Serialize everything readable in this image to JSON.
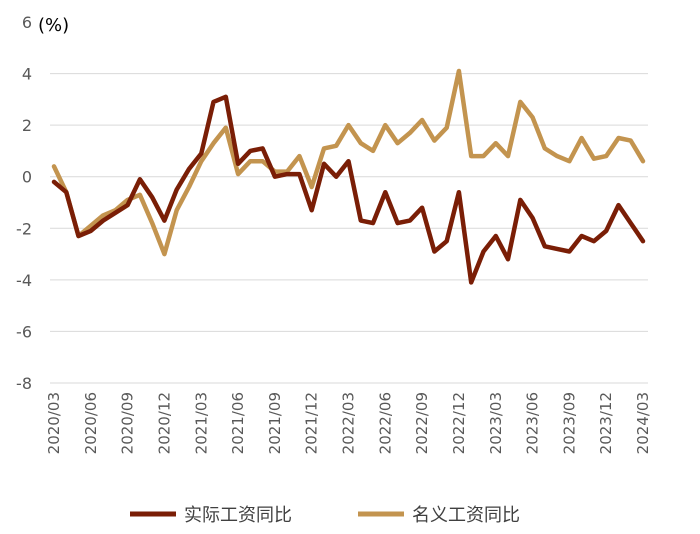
{
  "chart_data": {
    "type": "line",
    "unit_label": "(%)",
    "ylim": [
      -8,
      6
    ],
    "yticks": [
      "6",
      "4",
      "2",
      "0",
      "-2",
      "-4",
      "-6",
      "-8"
    ],
    "grid": true,
    "legend_position": "bottom",
    "x": [
      "2020/03",
      "2020/04",
      "2020/05",
      "2020/06",
      "2020/07",
      "2020/08",
      "2020/09",
      "2020/10",
      "2020/11",
      "2020/12",
      "2021/01",
      "2021/02",
      "2021/03",
      "2021/04",
      "2021/05",
      "2021/06",
      "2021/07",
      "2021/08",
      "2021/09",
      "2021/10",
      "2021/11",
      "2021/12",
      "2022/01",
      "2022/02",
      "2022/03",
      "2022/04",
      "2022/05",
      "2022/06",
      "2022/07",
      "2022/08",
      "2022/09",
      "2022/10",
      "2022/11",
      "2022/12",
      "2023/01",
      "2023/02",
      "2023/03",
      "2023/04",
      "2023/05",
      "2023/06",
      "2023/07",
      "2023/08",
      "2023/09",
      "2023/10",
      "2023/11",
      "2023/12",
      "2024/01",
      "2024/02",
      "2024/03"
    ],
    "xtick_labels": [
      "2020/03",
      "2020/06",
      "2020/09",
      "2020/12",
      "2021/03",
      "2021/06",
      "2021/09",
      "2021/12",
      "2022/03",
      "2022/06",
      "2022/09",
      "2022/12",
      "2023/03",
      "2023/06",
      "2023/09",
      "2023/12",
      "2024/03"
    ],
    "series": [
      {
        "name": "实际工资同比",
        "color": "#7a1e06",
        "values": [
          -0.2,
          -0.6,
          -2.3,
          -2.1,
          -1.7,
          -1.4,
          -1.1,
          -0.1,
          -0.8,
          -1.7,
          -0.5,
          0.3,
          0.9,
          2.9,
          3.1,
          0.5,
          1.0,
          1.1,
          0.0,
          0.1,
          0.1,
          -1.3,
          0.5,
          0.0,
          0.6,
          -1.7,
          -1.8,
          -0.6,
          -1.8,
          -1.7,
          -1.2,
          -2.9,
          -2.5,
          -0.6,
          -4.1,
          -2.9,
          -2.3,
          -3.2,
          -0.9,
          -1.6,
          -2.7,
          -2.8,
          -2.9,
          -2.3,
          -2.5,
          -2.1,
          -1.1,
          -1.8,
          -2.5
        ]
      },
      {
        "name": "名义工资同比",
        "color": "#c3944f",
        "values": [
          0.4,
          -0.6,
          -2.3,
          -1.9,
          -1.5,
          -1.3,
          -0.9,
          -0.7,
          -1.8,
          -3.0,
          -1.3,
          -0.4,
          0.6,
          1.3,
          1.9,
          0.1,
          0.6,
          0.6,
          0.2,
          0.2,
          0.8,
          -0.4,
          1.1,
          1.2,
          2.0,
          1.3,
          1.0,
          2.0,
          1.3,
          1.7,
          2.2,
          1.4,
          1.9,
          4.1,
          0.8,
          0.8,
          1.3,
          0.8,
          2.9,
          2.3,
          1.1,
          0.8,
          0.6,
          1.5,
          0.7,
          0.8,
          1.5,
          1.4,
          0.6
        ]
      }
    ]
  }
}
